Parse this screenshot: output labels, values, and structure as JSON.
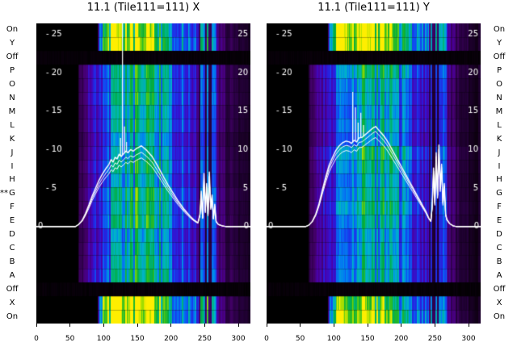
{
  "figure": {
    "row_labels": [
      "On",
      "Y",
      "Off",
      "P",
      "O",
      "N",
      "M",
      "L",
      "K",
      "J",
      "I",
      "H",
      "G",
      "F",
      "E",
      "D",
      "C",
      "B",
      "A",
      "Off",
      "X",
      "On"
    ],
    "marker": "**",
    "marker_row": "G",
    "colors": {
      "background": "#ffffff",
      "panel_bg": "#000000",
      "line": "#ffffff",
      "axis_text": "#000000",
      "inplot_text": "#ffffff"
    }
  },
  "chart_data": [
    {
      "type": "heatmap",
      "title": "11.1 (Tile111=111) X",
      "xlabel": "",
      "ylabel": "",
      "rows": [
        "On",
        "Y",
        "Off",
        "P",
        "O",
        "N",
        "M",
        "L",
        "K",
        "J",
        "I",
        "H",
        "G",
        "F",
        "E",
        "D",
        "C",
        "B",
        "A",
        "Off",
        "X",
        "On"
      ],
      "x_ticks": [
        0,
        50,
        100,
        150,
        200,
        250,
        300
      ],
      "y_ticks": [
        0,
        5,
        10,
        15,
        20,
        25
      ],
      "xlim": [
        0,
        318
      ],
      "ylim": [
        -12.6,
        26.4
      ],
      "legend": "none",
      "trace_scales": [
        1,
        0.92,
        0.85
      ],
      "line": [
        [
          0,
          0
        ],
        [
          58,
          0
        ],
        [
          63,
          0.3
        ],
        [
          68,
          0.8
        ],
        [
          73,
          1.7
        ],
        [
          78,
          2.8
        ],
        [
          83,
          4
        ],
        [
          88,
          5
        ],
        [
          93,
          6
        ],
        [
          98,
          6.8
        ],
        [
          103,
          7.5
        ],
        [
          108,
          8.1
        ],
        [
          111,
          8.7
        ],
        [
          114,
          8.4
        ],
        [
          117,
          9
        ],
        [
          120,
          8.8
        ],
        [
          123,
          9.4
        ],
        [
          126,
          9.1
        ],
        [
          130,
          9.5
        ],
        [
          133,
          9.8
        ],
        [
          136,
          9.6
        ],
        [
          140,
          10
        ],
        [
          144,
          9.8
        ],
        [
          148,
          10.1
        ],
        [
          152,
          10.3
        ],
        [
          156,
          10.5
        ],
        [
          160,
          10.2
        ],
        [
          164,
          9.9
        ],
        [
          168,
          9.5
        ],
        [
          172,
          9.1
        ],
        [
          176,
          8.5
        ],
        [
          180,
          7.9
        ],
        [
          185,
          7.1
        ],
        [
          190,
          6.3
        ],
        [
          195,
          5.5
        ],
        [
          200,
          4.8
        ],
        [
          205,
          4.1
        ],
        [
          210,
          3.4
        ],
        [
          215,
          2.8
        ],
        [
          220,
          2.2
        ],
        [
          225,
          1.7
        ],
        [
          230,
          1.2
        ],
        [
          235,
          0.8
        ],
        [
          240,
          0.5
        ],
        [
          243,
          1.6
        ],
        [
          245,
          4.6
        ],
        [
          247,
          1.2
        ],
        [
          249,
          6.9
        ],
        [
          251,
          2.1
        ],
        [
          253,
          5.6
        ],
        [
          255,
          1.6
        ],
        [
          257,
          7.1
        ],
        [
          259,
          2.6
        ],
        [
          261,
          4.1
        ],
        [
          263,
          1.1
        ],
        [
          265,
          2.9
        ],
        [
          267,
          0.7
        ],
        [
          270,
          0.3
        ],
        [
          276,
          0.1
        ],
        [
          282,
          0
        ],
        [
          318,
          0
        ]
      ],
      "spikes": [
        [
          125,
          11.5
        ],
        [
          128,
          27.5
        ],
        [
          131,
          13
        ],
        [
          134,
          11
        ]
      ]
    },
    {
      "type": "heatmap",
      "title": "11.1 (Tile111=111) Y",
      "xlabel": "",
      "ylabel": "",
      "rows": [
        "On",
        "Y",
        "Off",
        "P",
        "O",
        "N",
        "M",
        "L",
        "K",
        "J",
        "I",
        "H",
        "G",
        "F",
        "E",
        "D",
        "C",
        "B",
        "A",
        "Off",
        "X",
        "On"
      ],
      "x_ticks": [
        0,
        50,
        100,
        150,
        200,
        250,
        300
      ],
      "y_ticks": [
        0,
        5,
        10,
        15,
        20,
        25
      ],
      "xlim": [
        0,
        318
      ],
      "ylim": [
        -12.6,
        26.4
      ],
      "legend": "none",
      "trace_scales": [
        1,
        0.95,
        0.89
      ],
      "line": [
        [
          0,
          0
        ],
        [
          58,
          0
        ],
        [
          63,
          0.2
        ],
        [
          68,
          0.7
        ],
        [
          73,
          1.6
        ],
        [
          78,
          3
        ],
        [
          83,
          4.8
        ],
        [
          88,
          6.5
        ],
        [
          93,
          8
        ],
        [
          98,
          9
        ],
        [
          103,
          9.9
        ],
        [
          108,
          10.5
        ],
        [
          113,
          10.9
        ],
        [
          118,
          11.1
        ],
        [
          123,
          11
        ],
        [
          126,
          10.8
        ],
        [
          130,
          11.2
        ],
        [
          134,
          11
        ],
        [
          137,
          11.5
        ],
        [
          142,
          11.6
        ],
        [
          146,
          11.9
        ],
        [
          150,
          12.2
        ],
        [
          154,
          12.5
        ],
        [
          158,
          12.8
        ],
        [
          162,
          13
        ],
        [
          166,
          12.6
        ],
        [
          170,
          12.2
        ],
        [
          174,
          11.8
        ],
        [
          178,
          11.3
        ],
        [
          182,
          10.7
        ],
        [
          187,
          9.9
        ],
        [
          192,
          9.1
        ],
        [
          197,
          8.3
        ],
        [
          202,
          7.5
        ],
        [
          207,
          6.7
        ],
        [
          212,
          5.9
        ],
        [
          217,
          5.1
        ],
        [
          222,
          4.3
        ],
        [
          227,
          3.5
        ],
        [
          232,
          2.7
        ],
        [
          237,
          1.9
        ],
        [
          241,
          1.1
        ],
        [
          244,
          0.7
        ],
        [
          246,
          2.6
        ],
        [
          248,
          7.6
        ],
        [
          250,
          3.1
        ],
        [
          252,
          9.6
        ],
        [
          254,
          4.1
        ],
        [
          256,
          10.6
        ],
        [
          258,
          5.1
        ],
        [
          260,
          8.1
        ],
        [
          262,
          3.1
        ],
        [
          264,
          5.6
        ],
        [
          266,
          1.6
        ],
        [
          268,
          0.9
        ],
        [
          272,
          0.4
        ],
        [
          277,
          0.1
        ],
        [
          282,
          0
        ],
        [
          318,
          0
        ]
      ],
      "spikes": [
        [
          128,
          17.5
        ],
        [
          132,
          15.5
        ],
        [
          136,
          13.5
        ],
        [
          140,
          14.8
        ],
        [
          144,
          13.2
        ]
      ]
    }
  ],
  "heatmap_style": {
    "row_types": [
      "bright",
      "bright",
      "off",
      "active",
      "active",
      "active",
      "active",
      "active",
      "active",
      "active",
      "active",
      "active",
      "active",
      "active",
      "active",
      "active",
      "active",
      "active",
      "active",
      "off",
      "bright",
      "bright"
    ],
    "stripe_zone": [
      241,
      267
    ],
    "profiles": {
      "active": [
        [
          0,
          0
        ],
        [
          61,
          0
        ],
        [
          63,
          0.13
        ],
        [
          72,
          0.2
        ],
        [
          85,
          0.3
        ],
        [
          100,
          0.42
        ],
        [
          115,
          0.52
        ],
        [
          130,
          0.6
        ],
        [
          150,
          0.64
        ],
        [
          175,
          0.62
        ],
        [
          190,
          0.55
        ],
        [
          205,
          0.46
        ],
        [
          220,
          0.38
        ],
        [
          235,
          0.3
        ],
        [
          243,
          0.28
        ],
        [
          255,
          0.3
        ],
        [
          267,
          0.24
        ],
        [
          280,
          0.16
        ],
        [
          295,
          0.11
        ],
        [
          318,
          0.08
        ]
      ],
      "bright": [
        [
          0,
          0
        ],
        [
          90,
          0
        ],
        [
          93,
          0.5
        ],
        [
          100,
          0.85
        ],
        [
          110,
          0.95
        ],
        [
          150,
          0.97
        ],
        [
          175,
          0.9
        ],
        [
          185,
          0.75
        ],
        [
          200,
          0.6
        ],
        [
          215,
          0.52
        ],
        [
          230,
          0.46
        ],
        [
          245,
          0.42
        ],
        [
          255,
          0.45
        ],
        [
          265,
          0.3
        ],
        [
          278,
          0.18
        ],
        [
          295,
          0.12
        ],
        [
          318,
          0.08
        ]
      ],
      "off": [
        [
          0,
          0.02
        ],
        [
          318,
          0.02
        ]
      ]
    },
    "colormap": [
      [
        0,
        "#000000"
      ],
      [
        0.06,
        "#0d0010"
      ],
      [
        0.13,
        "#26003e"
      ],
      [
        0.2,
        "#44006a"
      ],
      [
        0.28,
        "#4b00a8"
      ],
      [
        0.36,
        "#2d18d8"
      ],
      [
        0.44,
        "#1440f0"
      ],
      [
        0.52,
        "#0080f0"
      ],
      [
        0.6,
        "#00b4c8"
      ],
      [
        0.68,
        "#00b478"
      ],
      [
        0.76,
        "#00aa3c"
      ],
      [
        0.84,
        "#3cc31e"
      ],
      [
        0.92,
        "#a0dc00"
      ],
      [
        1,
        "#ffee00"
      ]
    ]
  }
}
